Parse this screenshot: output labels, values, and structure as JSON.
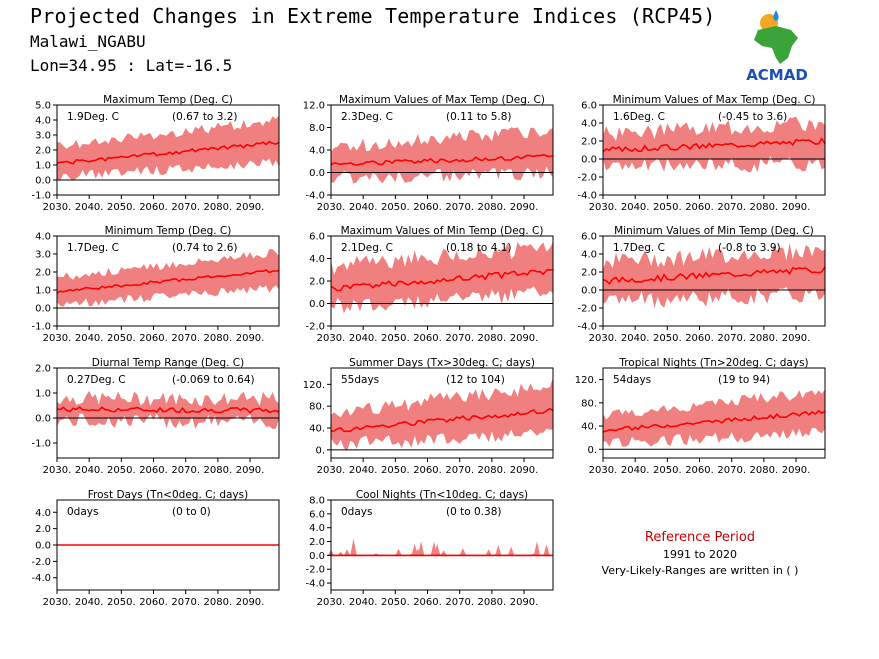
{
  "header": {
    "title": "Projected Changes in Extreme Temperature Indices (RCP45)",
    "location": "Malawi_NGABU",
    "coords": "Lon=34.95 : Lat=-16.5"
  },
  "logo": {
    "text": "ACMAD",
    "colors": {
      "africa": "#3aa43a",
      "text": "#1a4fb4",
      "sun": "#f5a623",
      "drop": "#1e88e5"
    }
  },
  "reference": {
    "title": "Reference Period",
    "years": "1991 to 2020",
    "note": "Very-Likely-Ranges are written in ( )"
  },
  "colors": {
    "band": "#f08080",
    "line": "#ff0000",
    "zero": "#000000"
  },
  "chart_data": [
    {
      "type": "area",
      "title": "Maximum Temp (Deg. C)",
      "value_label": "1.9Deg. C",
      "range_label": "(0.67 to 3.2)",
      "yticks": [
        "5.0",
        "4.0",
        "3.0",
        "2.0",
        "1.0",
        "0.0",
        "-1.0"
      ],
      "ylim": [
        -1.0,
        5.0
      ],
      "xlim": [
        2030,
        2099
      ],
      "xticks": [
        "2030.",
        "2040.",
        "2050.",
        "2060.",
        "2070.",
        "2080.",
        "2090."
      ],
      "median": [
        1.1,
        2.5
      ],
      "low": [
        0.2,
        1.2
      ],
      "high": [
        2.2,
        4.0
      ],
      "noise": 0.35,
      "seed": 1
    },
    {
      "type": "area",
      "title": "Maximum Values of Max Temp (Deg. C)",
      "value_label": "2.3Deg. C",
      "range_label": "(0.11 to 5.8)",
      "yticks": [
        "12.0",
        "8.0",
        "4.0",
        "0.0",
        "-4.0"
      ],
      "ylim": [
        -4.0,
        12.0
      ],
      "xlim": [
        2030,
        2099
      ],
      "xticks": [
        "2030.",
        "2040.",
        "2050.",
        "2060.",
        "2070.",
        "2080.",
        "2090."
      ],
      "median": [
        1.5,
        2.8
      ],
      "low": [
        -1.0,
        0.0
      ],
      "high": [
        4.5,
        7.5
      ],
      "noise": 1.2,
      "seed": 2
    },
    {
      "type": "area",
      "title": "Minimum Values of Max Temp (Deg. C)",
      "value_label": "1.6Deg. C",
      "range_label": "(-0.45 to 3.6)",
      "yticks": [
        "6.0",
        "4.0",
        "2.0",
        "0.0",
        "-2.0",
        "-4.0"
      ],
      "ylim": [
        -4.0,
        6.0
      ],
      "xlim": [
        2030,
        2099
      ],
      "xticks": [
        "2030.",
        "2040.",
        "2050.",
        "2060.",
        "2070.",
        "2080.",
        "2090."
      ],
      "median": [
        1.0,
        2.0
      ],
      "low": [
        -0.8,
        -0.5
      ],
      "high": [
        2.8,
        4.0
      ],
      "noise": 0.9,
      "seed": 3
    },
    {
      "type": "area",
      "title": "Minimum Temp (Deg. C)",
      "value_label": "1.7Deg. C",
      "range_label": "(0.74 to 2.6)",
      "yticks": [
        "4.0",
        "3.0",
        "2.0",
        "1.0",
        "0.0",
        "-1.0"
      ],
      "ylim": [
        -1.0,
        4.0
      ],
      "xlim": [
        2030,
        2099
      ],
      "xticks": [
        "2030.",
        "2040.",
        "2050.",
        "2060.",
        "2070.",
        "2080.",
        "2090."
      ],
      "median": [
        0.9,
        2.1
      ],
      "low": [
        0.2,
        1.1
      ],
      "high": [
        1.7,
        3.1
      ],
      "noise": 0.25,
      "seed": 4
    },
    {
      "type": "area",
      "title": "Maximum Values of Min Temp (Deg. C)",
      "value_label": "2.1Deg. C",
      "range_label": "(0.18 to 4.1)",
      "yticks": [
        "6.0",
        "4.0",
        "2.0",
        "0.0",
        "-2.0"
      ],
      "ylim": [
        -2.0,
        6.0
      ],
      "xlim": [
        2030,
        2099
      ],
      "xticks": [
        "2030.",
        "2040.",
        "2050.",
        "2060.",
        "2070.",
        "2080.",
        "2090."
      ],
      "median": [
        1.3,
        2.9
      ],
      "low": [
        -0.3,
        1.0
      ],
      "high": [
        3.3,
        5.0
      ],
      "noise": 0.8,
      "seed": 5
    },
    {
      "type": "area",
      "title": "Minimum Values of Min Temp (Deg. C)",
      "value_label": "1.7Deg. C",
      "range_label": "(-0.8 to 3.9)",
      "yticks": [
        "6.0",
        "4.0",
        "2.0",
        "0.0",
        "-2.0",
        "-4.0"
      ],
      "ylim": [
        -4.0,
        6.0
      ],
      "xlim": [
        2030,
        2099
      ],
      "xticks": [
        "2030.",
        "2040.",
        "2050.",
        "2060.",
        "2070.",
        "2080.",
        "2090."
      ],
      "median": [
        1.0,
        2.3
      ],
      "low": [
        -1.2,
        -0.5
      ],
      "high": [
        3.2,
        4.5
      ],
      "noise": 1.0,
      "seed": 6
    },
    {
      "type": "area",
      "title": "Diurnal Temp Range (Deg. C)",
      "value_label": "0.27Deg. C",
      "range_label": "(-0.069 to 0.64)",
      "yticks": [
        "2.0",
        "1.0",
        "0.0",
        "-1.0"
      ],
      "ylim": [
        -1.6,
        2.0
      ],
      "xlim": [
        2030,
        2099
      ],
      "xticks": [
        "2030.",
        "2040.",
        "2050.",
        "2060.",
        "2070.",
        "2080.",
        "2090."
      ],
      "median": [
        0.35,
        0.3
      ],
      "low": [
        -0.1,
        -0.15
      ],
      "high": [
        0.8,
        0.75
      ],
      "noise": 0.3,
      "seed": 7
    },
    {
      "type": "area",
      "title": "Summer Days (Tx>30deg. C; days)",
      "value_label": "55days",
      "range_label": "(12 to 104)",
      "yticks": [
        "120.",
        "80.",
        "40.",
        "0."
      ],
      "ylim": [
        -15,
        150
      ],
      "xlim": [
        2030,
        2099
      ],
      "xticks": [
        "2030.",
        "2040.",
        "2050.",
        "2060.",
        "2070.",
        "2080.",
        "2090."
      ],
      "median": [
        35,
        72
      ],
      "low": [
        10,
        30
      ],
      "high": [
        65,
        120
      ],
      "noise": 14,
      "seed": 8
    },
    {
      "type": "area",
      "title": "Tropical Nights (Tn>20deg. C; days)",
      "value_label": "54days",
      "range_label": "(19 to 94)",
      "yticks": [
        "120.",
        "80.",
        "40.",
        "0."
      ],
      "ylim": [
        -15,
        140
      ],
      "xlim": [
        2030,
        2099
      ],
      "xticks": [
        "2030.",
        "2040.",
        "2050.",
        "2060.",
        "2070.",
        "2080.",
        "2090."
      ],
      "median": [
        32,
        64
      ],
      "low": [
        10,
        28
      ],
      "high": [
        58,
        100
      ],
      "noise": 10,
      "seed": 9
    },
    {
      "type": "area",
      "title": "Frost Days (Tn<0deg. C; days)",
      "value_label": "0days",
      "range_label": "(0 to 0)",
      "yticks": [
        "4.0",
        "2.0",
        "0.0",
        "-2.0",
        "-4.0"
      ],
      "ylim": [
        -5.5,
        5.5
      ],
      "xlim": [
        2030,
        2099
      ],
      "xticks": [
        "2030.",
        "2040.",
        "2050.",
        "2060.",
        "2070.",
        "2080.",
        "2090."
      ],
      "median": [
        0,
        0
      ],
      "low": [
        0,
        0
      ],
      "high": [
        0,
        0
      ],
      "noise": 0,
      "seed": 10
    },
    {
      "type": "area",
      "title": "Cool Nights (Tn<10deg. C; days)",
      "value_label": "0days",
      "range_label": "(0 to 0.38)",
      "yticks": [
        "8.0",
        "6.0",
        "4.0",
        "2.0",
        "0.0",
        "-2.0",
        "-4.0"
      ],
      "ylim": [
        -5.0,
        8.0
      ],
      "xlim": [
        2030,
        2099
      ],
      "xticks": [
        "2030.",
        "2040.",
        "2050.",
        "2060.",
        "2070.",
        "2080.",
        "2090."
      ],
      "median": [
        0,
        0
      ],
      "low": [
        0,
        0
      ],
      "high": [
        0,
        0
      ],
      "noise": 0,
      "seed": 11,
      "spikes": true
    }
  ]
}
